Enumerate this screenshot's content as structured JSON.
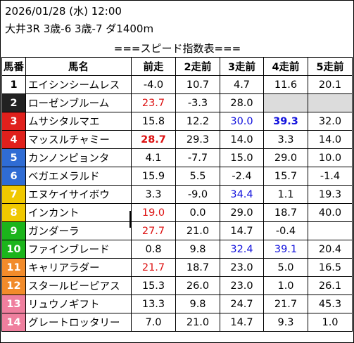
{
  "header": {
    "line1": "2026/01/28 (水) 12:00",
    "line2": "大井3R 3歳-6 3歳-7 ダ1400m"
  },
  "table_title": "===スピード指数表===",
  "columns": [
    "馬番",
    "馬名",
    "前走",
    "2走前",
    "3走前",
    "4走前",
    "5走前"
  ],
  "colors": {
    "red": "#dd1111",
    "blue": "#1010dd",
    "empty_cell": "#dcdcdc"
  },
  "rows": [
    {
      "no": "1",
      "bg": "#ffffff",
      "fg": "#000000",
      "name": "エイシンシームレス",
      "vals": [
        {
          "v": "-4.0"
        },
        {
          "v": "10.7"
        },
        {
          "v": "4.7"
        },
        {
          "v": "11.6"
        },
        {
          "v": "20.1"
        }
      ]
    },
    {
      "no": "2",
      "bg": "#222222",
      "fg": "#ffffff",
      "name": "ローゼンブルーム",
      "vals": [
        {
          "v": "23.7",
          "c": "red"
        },
        {
          "v": "-3.3"
        },
        {
          "v": "28.0"
        },
        {
          "v": "",
          "c": "empty"
        },
        {
          "v": "",
          "c": "empty"
        }
      ]
    },
    {
      "no": "3",
      "bg": "#e0201c",
      "fg": "#ffffff",
      "name": "ムサシタルマエ",
      "vals": [
        {
          "v": "15.8"
        },
        {
          "v": "12.2"
        },
        {
          "v": "30.0",
          "c": "blue"
        },
        {
          "v": "39.3",
          "c": "blue bold"
        },
        {
          "v": "32.0"
        }
      ]
    },
    {
      "no": "4",
      "bg": "#e0201c",
      "fg": "#ffffff",
      "name": "マッスルチャミー",
      "vals": [
        {
          "v": "28.7",
          "c": "red bold"
        },
        {
          "v": "29.3"
        },
        {
          "v": "14.0"
        },
        {
          "v": "3.3"
        },
        {
          "v": "14.0"
        }
      ]
    },
    {
      "no": "5",
      "bg": "#2f6cd4",
      "fg": "#ffffff",
      "name": "カンノンピョンタ",
      "vals": [
        {
          "v": "4.1"
        },
        {
          "v": "-7.7"
        },
        {
          "v": "15.0"
        },
        {
          "v": "29.0"
        },
        {
          "v": "10.0"
        }
      ]
    },
    {
      "no": "6",
      "bg": "#2f6cd4",
      "fg": "#ffffff",
      "name": "ベガエメラルド",
      "vals": [
        {
          "v": "15.9"
        },
        {
          "v": "5.5"
        },
        {
          "v": "-2.4"
        },
        {
          "v": "15.7"
        },
        {
          "v": "-1.4"
        }
      ]
    },
    {
      "no": "7",
      "bg": "#f0c800",
      "fg": "#ffffff",
      "name": "エヌケイサイボウ",
      "vals": [
        {
          "v": "3.3"
        },
        {
          "v": "-9.0"
        },
        {
          "v": "34.4",
          "c": "blue"
        },
        {
          "v": "1.1"
        },
        {
          "v": "19.3"
        }
      ]
    },
    {
      "no": "8",
      "bg": "#f0c800",
      "fg": "#ffffff",
      "name": "インカント",
      "vals": [
        {
          "v": "19.0",
          "c": "red"
        },
        {
          "v": "0.0"
        },
        {
          "v": "29.0"
        },
        {
          "v": "18.7"
        },
        {
          "v": "40.0"
        }
      ]
    },
    {
      "no": "9",
      "bg": "#1bb51b",
      "fg": "#ffffff",
      "name": "ガンダーラ",
      "vals": [
        {
          "v": "27.7",
          "c": "red"
        },
        {
          "v": "21.0"
        },
        {
          "v": "14.7"
        },
        {
          "v": "-0.4"
        },
        {
          "v": ""
        }
      ]
    },
    {
      "no": "10",
      "bg": "#1bb51b",
      "fg": "#ffffff",
      "name": "ファインブレード",
      "vals": [
        {
          "v": "0.8"
        },
        {
          "v": "9.8"
        },
        {
          "v": "32.4",
          "c": "blue"
        },
        {
          "v": "39.1",
          "c": "blue"
        },
        {
          "v": "20.4"
        }
      ]
    },
    {
      "no": "11",
      "bg": "#f28b2a",
      "fg": "#ffffff",
      "name": "キャリアラダー",
      "vals": [
        {
          "v": "21.7",
          "c": "red"
        },
        {
          "v": "18.7"
        },
        {
          "v": "23.0"
        },
        {
          "v": "5.0"
        },
        {
          "v": "16.5"
        }
      ]
    },
    {
      "no": "12",
      "bg": "#f28b2a",
      "fg": "#ffffff",
      "name": "スタールビーピアス",
      "vals": [
        {
          "v": "15.3"
        },
        {
          "v": "26.0"
        },
        {
          "v": "23.0"
        },
        {
          "v": "1.0"
        },
        {
          "v": "26.1"
        }
      ]
    },
    {
      "no": "13",
      "bg": "#ef7f9e",
      "fg": "#ffffff",
      "name": "リュウノギフト",
      "vals": [
        {
          "v": "13.3"
        },
        {
          "v": "9.8"
        },
        {
          "v": "24.7"
        },
        {
          "v": "21.7"
        },
        {
          "v": "45.3"
        }
      ]
    },
    {
      "no": "14",
      "bg": "#ef7f9e",
      "fg": "#ffffff",
      "name": "グレートロッタリー",
      "vals": [
        {
          "v": "7.0"
        },
        {
          "v": "21.0"
        },
        {
          "v": "14.7"
        },
        {
          "v": "9.3"
        },
        {
          "v": "1.0"
        }
      ]
    }
  ]
}
